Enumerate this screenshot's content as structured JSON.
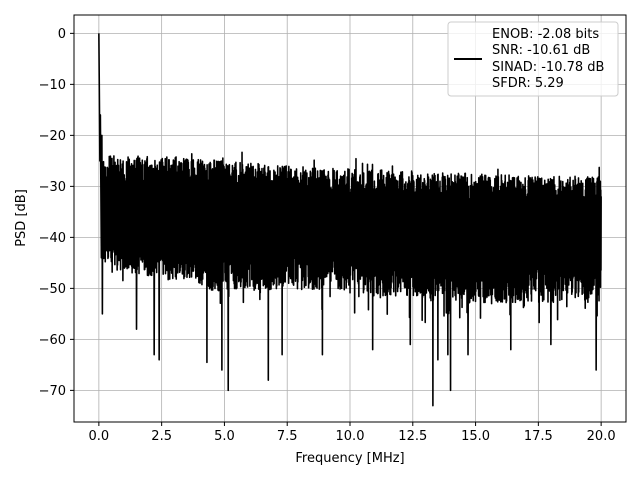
{
  "chart_data": {
    "type": "line",
    "xlabel": "Frequency [MHz]",
    "ylabel": "PSD [dB]",
    "xlim": [
      -0.99,
      20.99
    ],
    "ylim": [
      -76.2,
      3.6
    ],
    "xticks": [
      0.0,
      2.5,
      5.0,
      7.5,
      10.0,
      12.5,
      15.0,
      17.5,
      20.0
    ],
    "xtick_labels": [
      "0.0",
      "2.5",
      "5.0",
      "7.5",
      "10.0",
      "12.5",
      "15.0",
      "17.5",
      "20.0"
    ],
    "yticks": [
      0,
      -10,
      -20,
      -30,
      -40,
      -50,
      -60,
      -70
    ],
    "ytick_labels": [
      "0",
      "−10",
      "−20",
      "−30",
      "−40",
      "−50",
      "−60",
      "−70"
    ],
    "grid": true,
    "legend": {
      "placement": "top-right",
      "lines": [
        "ENOB: -2.08 bits",
        "SNR: -10.61 dB",
        "SINAD: -10.78 dB",
        "SFDR: 5.29"
      ]
    },
    "series": [
      {
        "color": "#000000",
        "x_range": [
          0.0,
          20.0
        ],
        "peak": {
          "x": 0.0,
          "y": 0.0
        },
        "upper_envelope": {
          "x": [
            0.2,
            2.5,
            5.0,
            7.5,
            10.0,
            12.5,
            15.0,
            17.5,
            20.0
          ],
          "y": [
            -22,
            -22,
            -23,
            -24,
            -24.5,
            -25,
            -25.5,
            -26,
            -26
          ]
        },
        "lower_envelope": {
          "x": [
            0.2,
            2.5,
            5.0,
            7.5,
            10.0,
            12.5,
            15.0,
            17.5,
            20.0
          ],
          "y": [
            -50,
            -52,
            -55,
            -54,
            -55,
            -56,
            -57,
            -57,
            -56
          ]
        },
        "notable_minima": [
          {
            "x": 0.13,
            "y": -55
          },
          {
            "x": 1.5,
            "y": -58
          },
          {
            "x": 2.2,
            "y": -63
          },
          {
            "x": 2.4,
            "y": -64
          },
          {
            "x": 4.3,
            "y": -64.5
          },
          {
            "x": 4.9,
            "y": -66
          },
          {
            "x": 5.15,
            "y": -70
          },
          {
            "x": 6.75,
            "y": -68
          },
          {
            "x": 7.3,
            "y": -63
          },
          {
            "x": 8.9,
            "y": -63
          },
          {
            "x": 10.9,
            "y": -62
          },
          {
            "x": 12.4,
            "y": -61
          },
          {
            "x": 13.3,
            "y": -73
          },
          {
            "x": 13.5,
            "y": -64
          },
          {
            "x": 13.9,
            "y": -63
          },
          {
            "x": 14.0,
            "y": -70
          },
          {
            "x": 14.7,
            "y": -63
          },
          {
            "x": 16.4,
            "y": -62
          },
          {
            "x": 18.0,
            "y": -61
          },
          {
            "x": 19.8,
            "y": -66
          }
        ]
      }
    ]
  }
}
